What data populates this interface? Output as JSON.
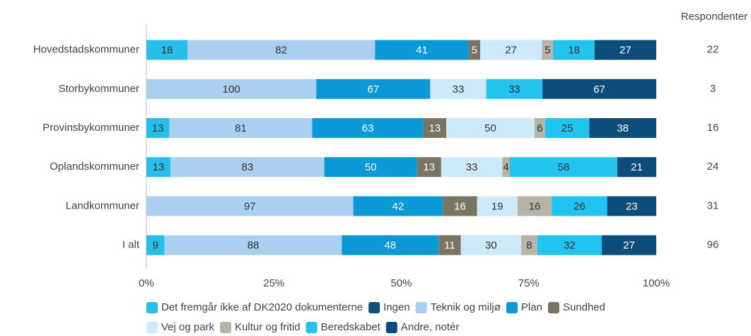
{
  "chart_data": {
    "type": "stacked_bar_100",
    "categories": [
      "Hovedstadskommuner",
      "Storbykommuner",
      "Provinsbykommuner",
      "Oplandskommuner",
      "Landkommuner",
      "I alt"
    ],
    "series": [
      {
        "name": "Det fremgår ikke af DK2020 dokumenterne",
        "color": "#27bfe9",
        "values": [
          18,
          null,
          13,
          13,
          null,
          9
        ]
      },
      {
        "name": "Ingen",
        "color": "#0d4f7a",
        "values": [
          null,
          null,
          null,
          null,
          null,
          null
        ]
      },
      {
        "name": "Teknik og miljø",
        "color": "#a9cff1",
        "values": [
          82,
          100,
          81,
          83,
          97,
          88
        ]
      },
      {
        "name": "Plan",
        "color": "#0a98d6",
        "values": [
          41,
          67,
          63,
          50,
          42,
          48
        ]
      },
      {
        "name": "Sundhed",
        "color": "#7b7462",
        "values": [
          5,
          null,
          13,
          13,
          16,
          11
        ]
      },
      {
        "name": "Vej og park",
        "color": "#cdeafb",
        "values": [
          27,
          33,
          50,
          33,
          19,
          30
        ]
      },
      {
        "name": "Kultur og fritid",
        "color": "#b5b4a6",
        "values": [
          5,
          null,
          6,
          4,
          16,
          8
        ]
      },
      {
        "name": "Beredskabet",
        "color": "#23c3ef",
        "values": [
          18,
          33,
          25,
          58,
          26,
          32
        ]
      },
      {
        "name": "Andre, notér",
        "color": "#0c4d7b",
        "values": [
          27,
          67,
          38,
          21,
          23,
          27
        ]
      }
    ],
    "xlim": [
      0,
      100
    ],
    "xticks": [
      {
        "value": 0,
        "label": "0%"
      },
      {
        "value": 25,
        "label": "25%"
      },
      {
        "value": 50,
        "label": "50%"
      },
      {
        "value": 75,
        "label": "75%"
      },
      {
        "value": 100,
        "label": "100%"
      }
    ],
    "respondents_title": "Respondenter",
    "respondents": [
      22,
      3,
      16,
      24,
      31,
      96
    ]
  }
}
